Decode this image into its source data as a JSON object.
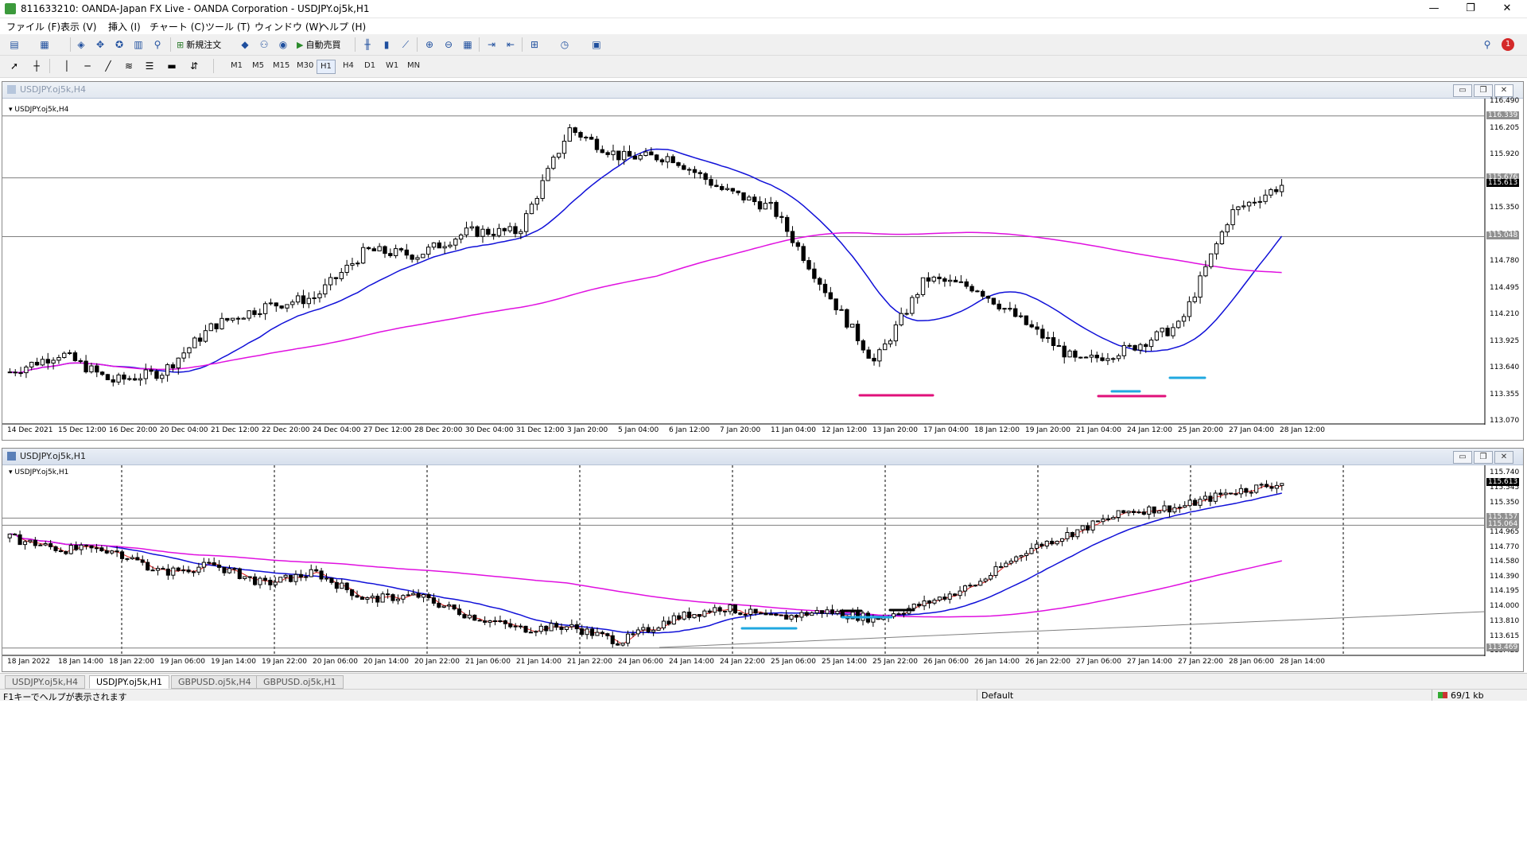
{
  "window": {
    "title": "811633210: OANDA-Japan FX Live - OANDA Corporation - USDJPY.oj5k,H1",
    "min_label": "—",
    "max_label": "❐",
    "close_label": "✕"
  },
  "menu": [
    "ファイル (F)",
    "表示 (V)",
    "挿入 (I)",
    "チャート (C)",
    "ツール (T)",
    "ウィンドウ (W)",
    "ヘルプ (H)"
  ],
  "toolbar": {
    "new_order_label": "新規注文",
    "auto_trade_label": "自動売買",
    "notification_count": "1"
  },
  "timeframes": [
    "M1",
    "M5",
    "M15",
    "M30",
    "H1",
    "H4",
    "D1",
    "W1",
    "MN"
  ],
  "active_timeframe": "H1",
  "charts": [
    {
      "window_title": "USDJPY.oj5k,H4",
      "label": "USDJPY.oj5k,H4",
      "price_ticks": [
        "116.490",
        "116.205",
        "115.920",
        "115.635",
        "115.350",
        "115.065",
        "114.780",
        "114.495",
        "114.210",
        "113.925",
        "113.640",
        "113.355",
        "113.070"
      ],
      "price_boxes": [
        "116.339",
        "115.676",
        "115.613",
        "115.048"
      ],
      "time_ticks": [
        "14 Dec 2021",
        "15 Dec 12:00",
        "16 Dec 20:00",
        "20 Dec 04:00",
        "21 Dec 12:00",
        "22 Dec 20:00",
        "24 Dec 04:00",
        "27 Dec 12:00",
        "28 Dec 20:00",
        "30 Dec 04:00",
        "31 Dec 12:00",
        "3 Jan 20:00",
        "5 Jan 04:00",
        "6 Jan 12:00",
        "7 Jan 20:00",
        "11 Jan 04:00",
        "12 Jan 12:00",
        "13 Jan 20:00",
        "17 Jan 04:00",
        "18 Jan 12:00",
        "19 Jan 20:00",
        "21 Jan 04:00",
        "24 Jan 12:00",
        "25 Jan 20:00",
        "27 Jan 04:00",
        "28 Jan 12:00"
      ]
    },
    {
      "window_title": "USDJPY.oj5k,H1",
      "label": "USDJPY.oj5k,H1",
      "price_ticks": [
        "115.740",
        "115.545",
        "115.350",
        "115.155",
        "114.965",
        "114.770",
        "114.580",
        "114.390",
        "114.195",
        "114.000",
        "113.810",
        "113.615",
        "113.425"
      ],
      "price_boxes": [
        "115.613",
        "115.157",
        "115.064",
        "113.469"
      ],
      "time_ticks": [
        "18 Jan 2022",
        "18 Jan 14:00",
        "18 Jan 22:00",
        "19 Jan 06:00",
        "19 Jan 14:00",
        "19 Jan 22:00",
        "20 Jan 06:00",
        "20 Jan 14:00",
        "20 Jan 22:00",
        "21 Jan 06:00",
        "21 Jan 14:00",
        "21 Jan 22:00",
        "24 Jan 06:00",
        "24 Jan 14:00",
        "24 Jan 22:00",
        "25 Jan 06:00",
        "25 Jan 14:00",
        "25 Jan 22:00",
        "26 Jan 06:00",
        "26 Jan 14:00",
        "26 Jan 22:00",
        "27 Jan 06:00",
        "27 Jan 14:00",
        "27 Jan 22:00",
        "28 Jan 06:00",
        "28 Jan 14:00"
      ]
    }
  ],
  "tabs": [
    "USDJPY.oj5k,H4",
    "USDJPY.oj5k,H1",
    "GBPUSD.oj5k,H4",
    "GBPUSD.oj5k,H1"
  ],
  "active_tab": 1,
  "status": {
    "help": "F1キーでヘルプが表示されます",
    "profile": "Default",
    "traffic": "69/1 kb"
  },
  "colors": {
    "ma_fast": "#1010d8",
    "ma_slow": "#e010e0",
    "ma_short": "#e02020",
    "mark_pink": "#e0107a",
    "mark_cyan": "#20a8e0"
  },
  "chart_data": [
    {
      "type": "candlestick",
      "symbol": "USDJPY.oj5k",
      "timeframe": "H4",
      "ylim": [
        113.07,
        116.49
      ],
      "close_path": [
        [
          "14 Dec 2021",
          113.6
        ],
        [
          "15 Dec 12:00",
          113.8
        ],
        [
          "16 Dec 20:00",
          113.5
        ],
        [
          "20 Dec 04:00",
          113.6
        ],
        [
          "21 Dec 12:00",
          114.1
        ],
        [
          "22 Dec 20:00",
          114.3
        ],
        [
          "24 Dec 04:00",
          114.4
        ],
        [
          "27 Dec 12:00",
          114.9
        ],
        [
          "28 Dec 20:00",
          114.85
        ],
        [
          "30 Dec 04:00",
          115.1
        ],
        [
          "31 Dec 12:00",
          115.1
        ],
        [
          "3 Jan 20:00",
          116.2
        ],
        [
          "5 Jan 04:00",
          115.9
        ],
        [
          "6 Jan 12:00",
          115.9
        ],
        [
          "7 Jan 20:00",
          115.55
        ],
        [
          "11 Jan 04:00",
          115.35
        ],
        [
          "12 Jan 12:00",
          114.5
        ],
        [
          "13 Jan 20:00",
          113.7
        ],
        [
          "17 Jan 04:00",
          114.6
        ],
        [
          "18 Jan 12:00",
          114.5
        ],
        [
          "19 Jan 20:00",
          114.1
        ],
        [
          "21 Jan 04:00",
          113.7
        ],
        [
          "24 Jan 12:00",
          113.85
        ],
        [
          "25 Jan 20:00",
          114.1
        ],
        [
          "27 Jan 04:00",
          115.3
        ],
        [
          "28 Jan 12:00",
          115.6
        ]
      ],
      "last_price": 115.613,
      "horizontal_lines": [
        116.339,
        115.676,
        115.048
      ],
      "series": [
        {
          "name": "",
          "type": "moving-average",
          "color": "#1010d8"
        },
        {
          "name": "",
          "type": "moving-average",
          "color": "#e010e0"
        }
      ]
    },
    {
      "type": "candlestick",
      "symbol": "USDJPY.oj5k",
      "timeframe": "H1",
      "ylim": [
        113.425,
        115.74
      ],
      "close_path": [
        [
          "18 Jan 2022",
          114.9
        ],
        [
          "18 Jan 14:00",
          114.75
        ],
        [
          "18 Jan 22:00",
          114.75
        ],
        [
          "19 Jan 06:00",
          114.45
        ],
        [
          "19 Jan 14:00",
          114.55
        ],
        [
          "19 Jan 22:00",
          114.3
        ],
        [
          "20 Jan 06:00",
          114.45
        ],
        [
          "20 Jan 14:00",
          114.1
        ],
        [
          "20 Jan 22:00",
          114.15
        ],
        [
          "21 Jan 06:00",
          113.9
        ],
        [
          "21 Jan 14:00",
          113.72
        ],
        [
          "21 Jan 22:00",
          113.75
        ],
        [
          "24 Jan 06:00",
          113.55
        ],
        [
          "24 Jan 14:00",
          113.85
        ],
        [
          "24 Jan 22:00",
          114.0
        ],
        [
          "25 Jan 06:00",
          113.85
        ],
        [
          "25 Jan 14:00",
          113.95
        ],
        [
          "25 Jan 22:00",
          113.85
        ],
        [
          "26 Jan 06:00",
          114.05
        ],
        [
          "26 Jan 14:00",
          114.3
        ],
        [
          "26 Jan 22:00",
          114.75
        ],
        [
          "27 Jan 06:00",
          115.0
        ],
        [
          "27 Jan 14:00",
          115.25
        ],
        [
          "27 Jan 22:00",
          115.3
        ],
        [
          "28 Jan 06:00",
          115.5
        ],
        [
          "28 Jan 14:00",
          115.61
        ]
      ],
      "last_price": 115.613,
      "horizontal_lines": [
        115.157,
        115.064,
        113.469
      ],
      "series": [
        {
          "name": "",
          "type": "moving-average",
          "color": "#e02020"
        },
        {
          "name": "",
          "type": "moving-average",
          "color": "#1010d8"
        },
        {
          "name": "",
          "type": "moving-average",
          "color": "#e010e0"
        }
      ]
    }
  ]
}
